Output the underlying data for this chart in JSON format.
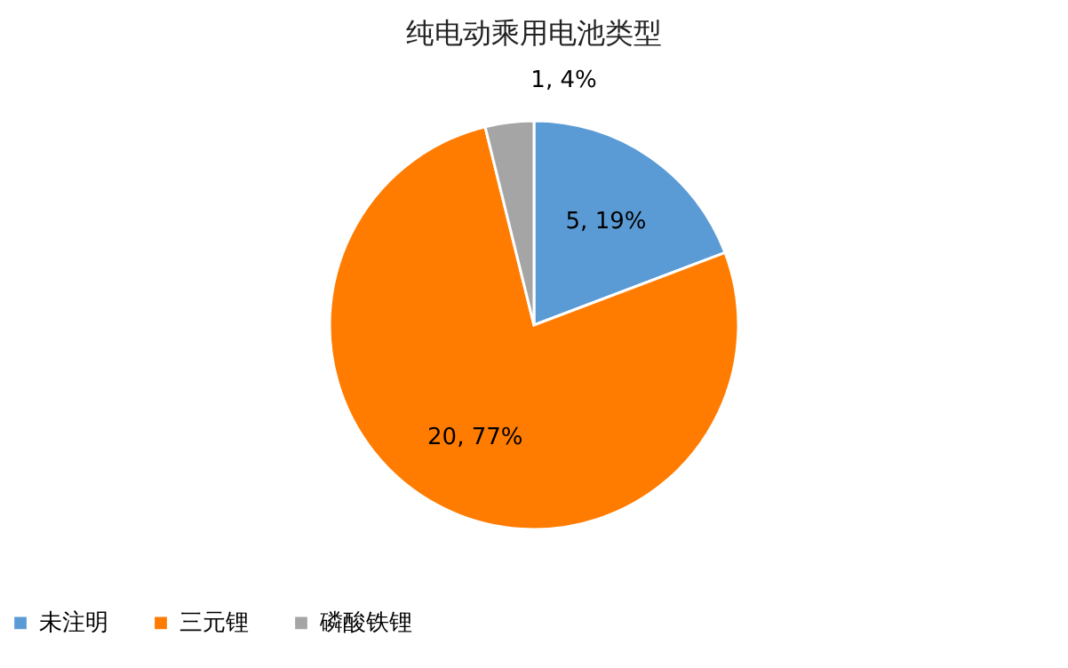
{
  "chart_data": {
    "type": "pie",
    "title": "纯电动乘用电池类型",
    "categories": [
      "未注明",
      "三元锂",
      "磷酸铁锂"
    ],
    "values": [
      5,
      20,
      1
    ],
    "colors": [
      "#5b9bd5",
      "#ff7c00",
      "#a5a5a5"
    ],
    "value_labels": [
      "5, 19%",
      "20, 77%",
      "1, 4%"
    ],
    "legend": "bottom"
  }
}
